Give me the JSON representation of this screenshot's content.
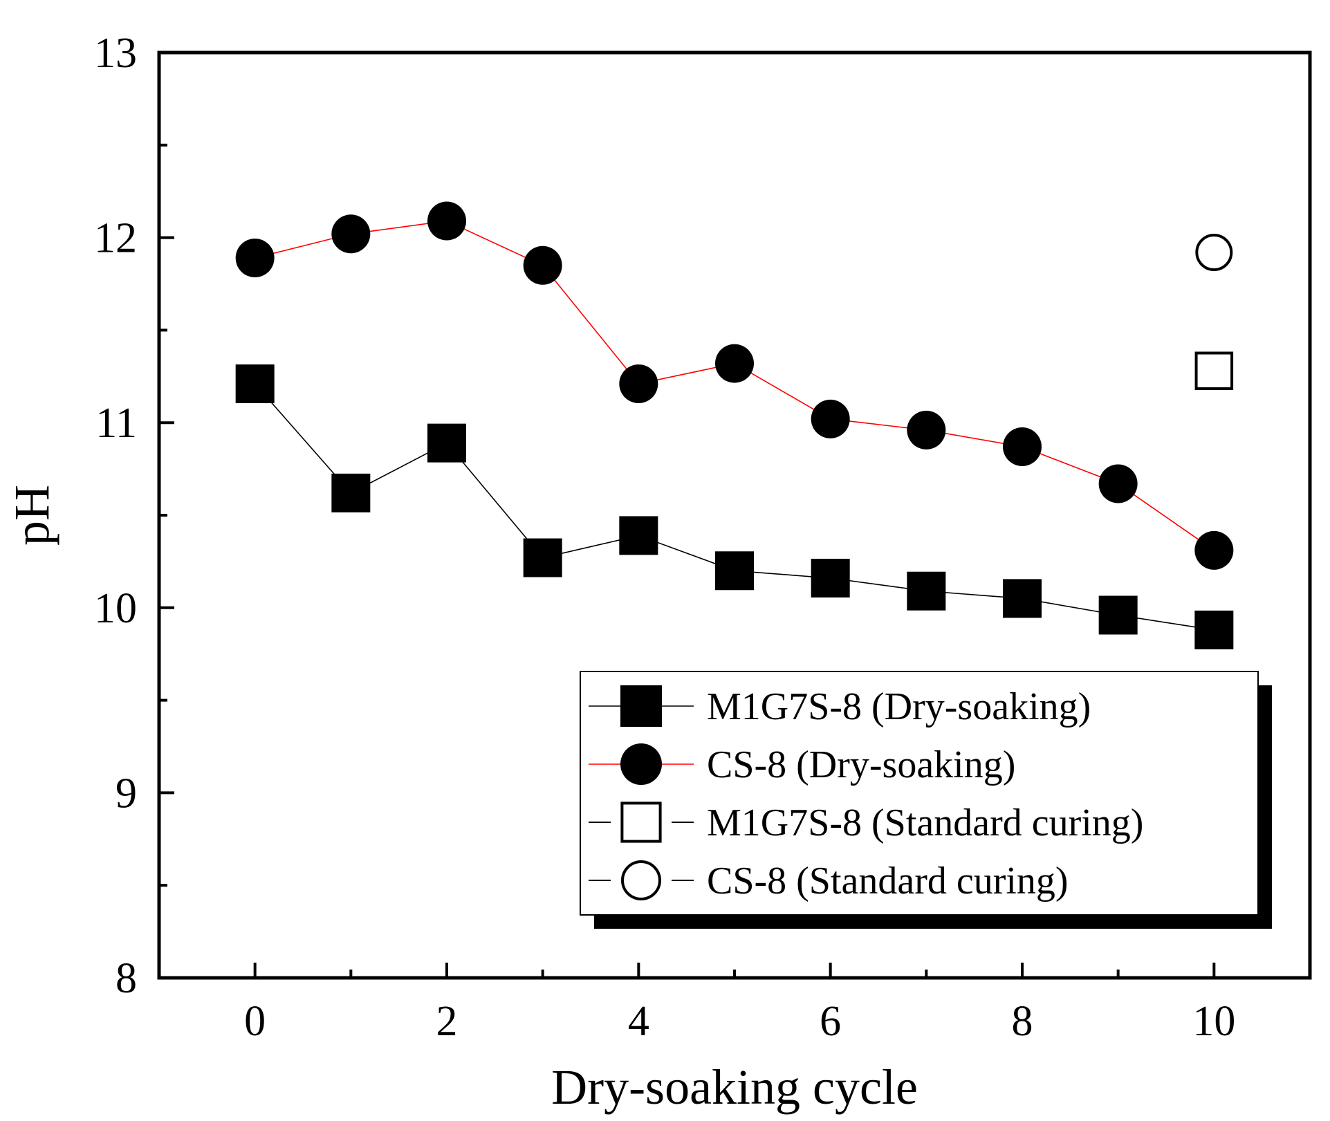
{
  "chart_data": {
    "type": "line",
    "title": "",
    "xlabel": "Dry-soaking cycle",
    "ylabel": "pH",
    "xlim": [
      -1,
      11
    ],
    "ylim": [
      8,
      13
    ],
    "xticks": [
      0,
      2,
      4,
      6,
      8,
      10
    ],
    "xticks_minor": [
      1,
      3,
      5,
      7,
      9
    ],
    "yticks": [
      8,
      9,
      10,
      11,
      12,
      13
    ],
    "legend_position": "bottom-right",
    "series": [
      {
        "name": "M1G7S-8 (Dry-soaking)",
        "marker": "filled-square",
        "line": true,
        "color": "#000000",
        "x": [
          0,
          1,
          2,
          3,
          4,
          5,
          6,
          7,
          8,
          9,
          10
        ],
        "y": [
          11.21,
          10.62,
          10.89,
          10.27,
          10.39,
          10.2,
          10.16,
          10.09,
          10.05,
          9.96,
          9.88
        ]
      },
      {
        "name": "CS-8 (Dry-soaking)",
        "marker": "filled-circle",
        "line": true,
        "color": "#ff0000",
        "x": [
          0,
          1,
          2,
          3,
          4,
          5,
          6,
          7,
          8,
          9,
          10
        ],
        "y": [
          11.89,
          12.02,
          12.09,
          11.85,
          11.21,
          11.32,
          11.02,
          10.96,
          10.87,
          10.67,
          10.31
        ]
      },
      {
        "name": "M1G7S-8 (Standard curing)",
        "marker": "open-square",
        "line": false,
        "color": "#000000",
        "x": [
          10
        ],
        "y": [
          11.28
        ]
      },
      {
        "name": "CS-8 (Standard curing)",
        "marker": "open-circle",
        "line": false,
        "color": "#000000",
        "x": [
          10
        ],
        "y": [
          11.92
        ]
      }
    ]
  }
}
